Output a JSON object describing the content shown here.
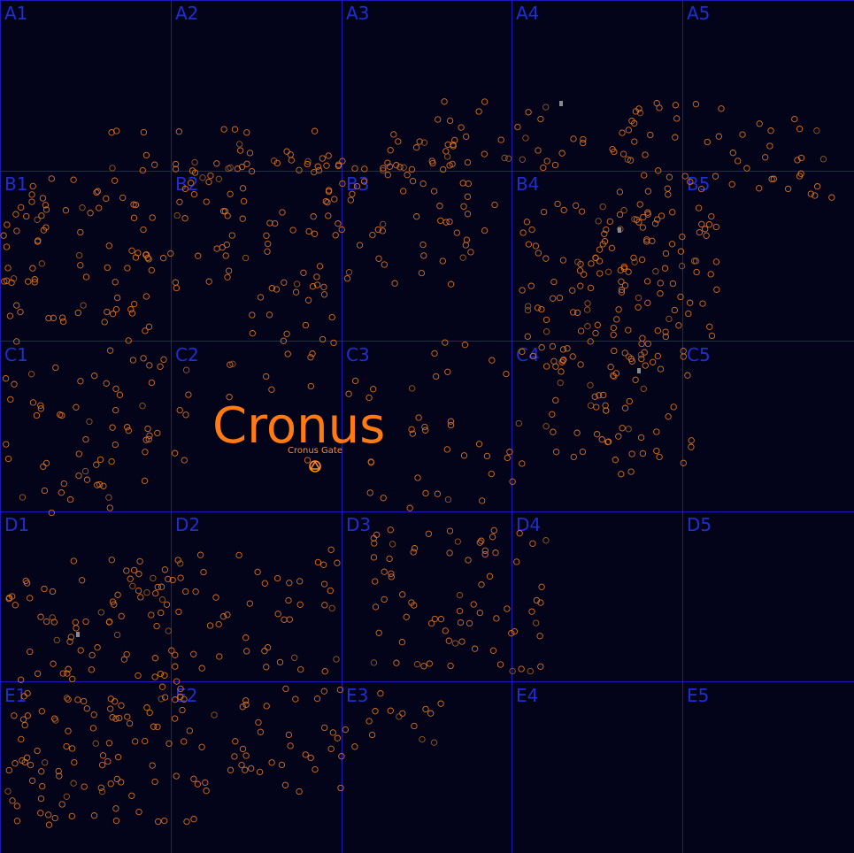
{
  "map": {
    "region_name": "Cronus",
    "gate": {
      "label": "Cronus Gate",
      "icon": "gate-icon"
    },
    "grid": {
      "rows": [
        "A",
        "B",
        "C",
        "D",
        "E"
      ],
      "cols": [
        "1",
        "2",
        "3",
        "4",
        "5"
      ],
      "cells": [
        "A1",
        "A2",
        "A3",
        "A4",
        "A5",
        "B1",
        "B2",
        "B3",
        "B4",
        "B5",
        "C1",
        "C2",
        "C3",
        "C4",
        "C5",
        "D1",
        "D2",
        "D3",
        "D4",
        "D5",
        "E1",
        "E2",
        "E3",
        "E4",
        "E5"
      ]
    },
    "colors": {
      "background": "#03031a",
      "grid": "#1a1ab4",
      "label": "#1f2fcf",
      "system": "#d9701a",
      "highlight": "#ff7a12"
    }
  }
}
